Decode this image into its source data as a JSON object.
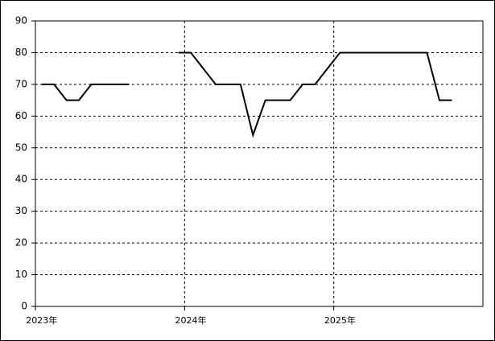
{
  "chart_data": {
    "type": "line",
    "categories": [
      "2023年",
      null,
      null,
      null,
      null,
      null,
      null,
      null,
      null,
      null,
      null,
      null,
      "2024年",
      null,
      null,
      null,
      null,
      null,
      null,
      null,
      null,
      null,
      null,
      null,
      "2025年",
      null,
      null,
      null,
      null,
      null,
      null,
      null,
      null,
      null,
      null,
      null
    ],
    "series": [
      {
        "color": "#000000",
        "values": [
          70,
          70,
          65,
          65,
          70,
          70,
          70,
          70,
          null,
          null,
          null,
          80,
          80,
          75,
          70,
          70,
          70,
          54,
          65,
          65,
          65,
          70,
          70,
          75,
          80,
          80,
          80,
          80,
          80,
          80,
          80,
          80,
          65,
          65,
          null,
          null
        ]
      }
    ],
    "ylim": [
      0,
      90
    ],
    "yticks": [
      0,
      10,
      20,
      30,
      40,
      50,
      60,
      70,
      80,
      90
    ],
    "grid": true
  }
}
